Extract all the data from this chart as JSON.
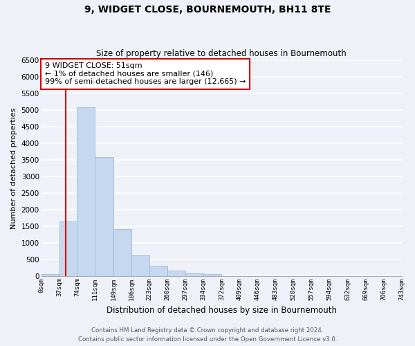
{
  "title": "9, WIDGET CLOSE, BOURNEMOUTH, BH11 8TE",
  "subtitle": "Size of property relative to detached houses in Bournemouth",
  "bar_values": [
    60,
    1640,
    5080,
    3580,
    1420,
    620,
    310,
    155,
    80,
    50,
    0,
    0,
    0,
    0,
    0,
    0,
    0,
    0,
    0,
    0
  ],
  "bin_edges": [
    0,
    37,
    74,
    111,
    149,
    186,
    223,
    260,
    297,
    334,
    372,
    409,
    446,
    483,
    520,
    557,
    594,
    632,
    669,
    706,
    743
  ],
  "tick_labels": [
    "0sqm",
    "37sqm",
    "74sqm",
    "111sqm",
    "149sqm",
    "186sqm",
    "223sqm",
    "260sqm",
    "297sqm",
    "334sqm",
    "372sqm",
    "409sqm",
    "446sqm",
    "483sqm",
    "520sqm",
    "557sqm",
    "594sqm",
    "632sqm",
    "669sqm",
    "706sqm",
    "743sqm"
  ],
  "bar_color": "#c5d8f0",
  "bar_edge_color": "#a0b8d8",
  "vline_x": 51,
  "vline_color": "#cc0000",
  "ylabel": "Number of detached properties",
  "xlabel": "Distribution of detached houses by size in Bournemouth",
  "ylim": [
    0,
    6500
  ],
  "yticks": [
    0,
    500,
    1000,
    1500,
    2000,
    2500,
    3000,
    3500,
    4000,
    4500,
    5000,
    5500,
    6000,
    6500
  ],
  "annotation_line1": "9 WIDGET CLOSE: 51sqm",
  "annotation_line2": "← 1% of detached houses are smaller (146)",
  "annotation_line3": "99% of semi-detached houses are larger (12,665) →",
  "annotation_box_color": "white",
  "annotation_box_edge": "#cc0000",
  "footer_line1": "Contains HM Land Registry data © Crown copyright and database right 2024.",
  "footer_line2": "Contains public sector information licensed under the Open Government Licence v3.0.",
  "background_color": "#eef2f8",
  "grid_color": "white"
}
